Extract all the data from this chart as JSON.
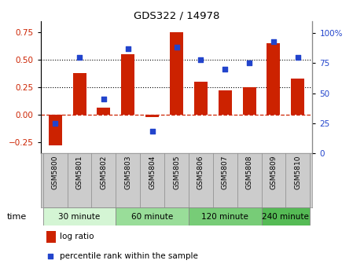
{
  "title": "GDS322 / 14978",
  "samples": [
    "GSM5800",
    "GSM5801",
    "GSM5802",
    "GSM5803",
    "GSM5804",
    "GSM5805",
    "GSM5806",
    "GSM5807",
    "GSM5808",
    "GSM5809",
    "GSM5810"
  ],
  "log_ratio": [
    -0.28,
    0.38,
    0.06,
    0.55,
    -0.02,
    0.75,
    0.3,
    0.22,
    0.25,
    0.65,
    0.33
  ],
  "percentile": [
    25,
    80,
    45,
    87,
    18,
    88,
    78,
    70,
    75,
    93,
    80
  ],
  "groups": [
    {
      "label": "30 minute",
      "samples": [
        0,
        1,
        2
      ],
      "color": "#d4f5d4"
    },
    {
      "label": "60 minute",
      "samples": [
        3,
        4,
        5
      ],
      "color": "#99dd99"
    },
    {
      "label": "120 minute",
      "samples": [
        6,
        7,
        8
      ],
      "color": "#77cc77"
    },
    {
      "label": "240 minute",
      "samples": [
        9,
        10
      ],
      "color": "#55bb55"
    }
  ],
  "bar_color": "#cc2200",
  "dot_color": "#2244cc",
  "ylim_left": [
    -0.35,
    0.85
  ],
  "ylim_right": [
    0,
    110
  ],
  "yticks_left": [
    -0.25,
    0,
    0.25,
    0.5,
    0.75
  ],
  "yticks_right": [
    0,
    25,
    50,
    75,
    100
  ],
  "hline_y": 0,
  "dotted_lines": [
    0.25,
    0.5
  ],
  "bar_width": 0.55,
  "legend_log_ratio": "log ratio",
  "legend_percentile": "percentile rank within the sample",
  "time_label": "time",
  "sample_bg_color": "#cccccc"
}
